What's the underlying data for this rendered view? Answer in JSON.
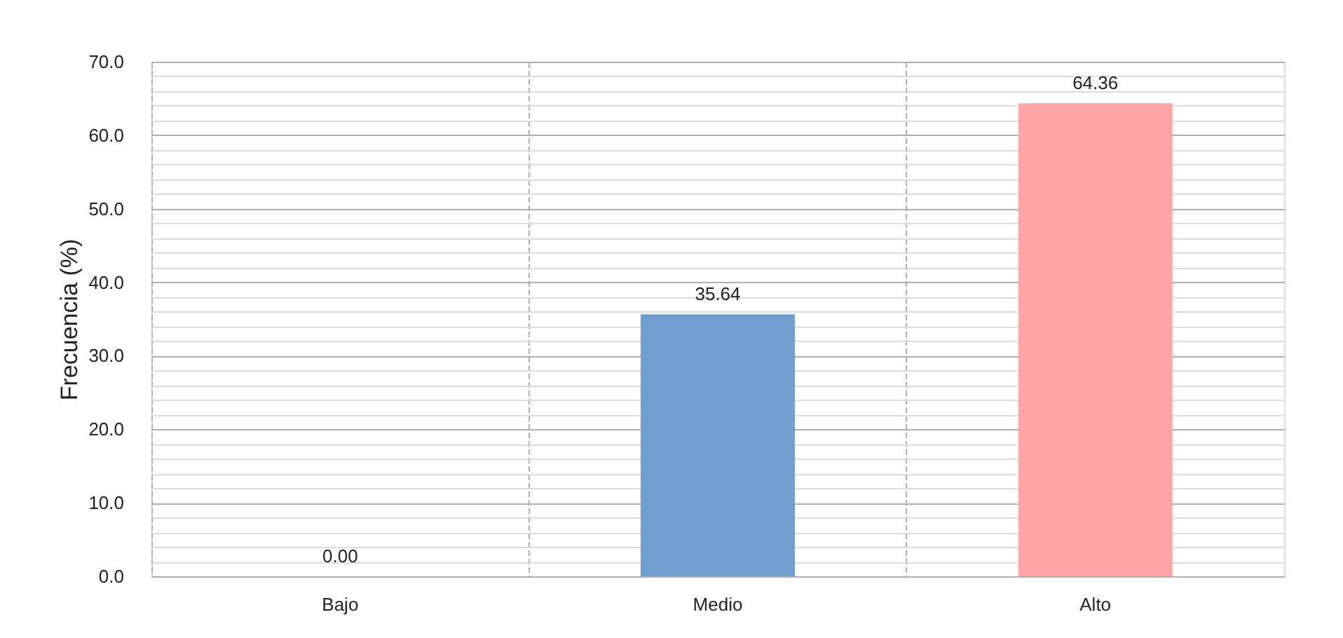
{
  "chart_data": {
    "type": "bar",
    "ylabel": "Frecuencia (%)",
    "categories": [
      "Bajo",
      "Medio",
      "Alto"
    ],
    "values": [
      0.0,
      35.64,
      64.36
    ],
    "colors": [
      "#6f9fcf",
      "#6f9fcf",
      "#ffa5a5"
    ],
    "value_labels": [
      "0.00",
      "35.64",
      "64.36"
    ],
    "ylim": [
      0,
      70
    ],
    "yticks": [
      {
        "value": 0,
        "label": "0.0"
      },
      {
        "value": 2,
        "label": null
      },
      {
        "value": 4,
        "label": null
      },
      {
        "value": 6,
        "label": null
      },
      {
        "value": 8,
        "label": null
      },
      {
        "value": 10,
        "label": "10.0"
      },
      {
        "value": 12,
        "label": null
      },
      {
        "value": 14,
        "label": null
      },
      {
        "value": 16,
        "label": null
      },
      {
        "value": 18,
        "label": null
      },
      {
        "value": 20,
        "label": "20.0"
      },
      {
        "value": 22,
        "label": null
      },
      {
        "value": 24,
        "label": null
      },
      {
        "value": 26,
        "label": null
      },
      {
        "value": 28,
        "label": null
      },
      {
        "value": 30,
        "label": "30.0"
      },
      {
        "value": 32,
        "label": null
      },
      {
        "value": 34,
        "label": null
      },
      {
        "value": 36,
        "label": null
      },
      {
        "value": 38,
        "label": null
      },
      {
        "value": 40,
        "label": "40.0"
      },
      {
        "value": 42,
        "label": null
      },
      {
        "value": 44,
        "label": null
      },
      {
        "value": 46,
        "label": null
      },
      {
        "value": 48,
        "label": null
      },
      {
        "value": 50,
        "label": "50.0"
      },
      {
        "value": 52,
        "label": null
      },
      {
        "value": 54,
        "label": null
      },
      {
        "value": 56,
        "label": null
      },
      {
        "value": 58,
        "label": null
      },
      {
        "value": 60,
        "label": "60.0"
      },
      {
        "value": 62,
        "label": null
      },
      {
        "value": 64,
        "label": null
      },
      {
        "value": 66,
        "label": null
      },
      {
        "value": 68,
        "label": null
      },
      {
        "value": 70,
        "label": "70.0"
      }
    ],
    "grid": true
  }
}
